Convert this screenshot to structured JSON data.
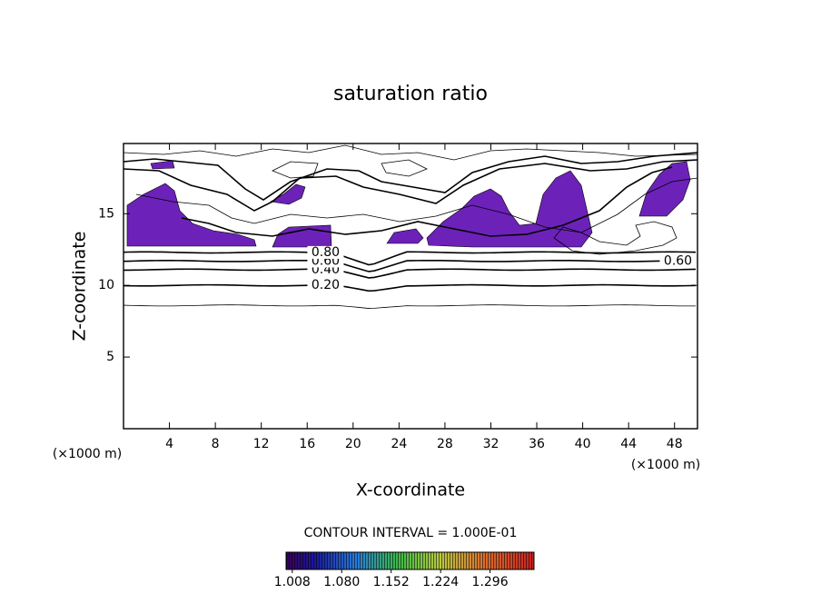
{
  "chart_data": {
    "type": "contour",
    "title": "saturation ratio",
    "x_label": "X-coordinate",
    "y_label": "Z-coordinate",
    "y_unit_label": "(×1000 m)",
    "x_unit_label": "(×1000 m)",
    "xlim": [
      0,
      50
    ],
    "ylim": [
      0,
      19.9
    ],
    "xticks": [
      4,
      8,
      12,
      16,
      20,
      24,
      28,
      32,
      36,
      40,
      44,
      48
    ],
    "yticks": [
      5,
      10,
      15
    ],
    "contours": [
      {
        "level": 0.1,
        "z": 8.6
      },
      {
        "level": 0.2,
        "label": "0.20",
        "z": 10.0,
        "label_x": [
          17.6
        ]
      },
      {
        "level": 0.4,
        "label": "0.40",
        "z": 11.1,
        "label_x": [
          17.6
        ]
      },
      {
        "level": 0.6,
        "label": "0.60",
        "z": 11.7,
        "label_x": [
          17.6,
          48.3
        ]
      },
      {
        "level": 0.8,
        "label": "0.80",
        "z": 12.3,
        "label_x": [
          17.6
        ]
      }
    ],
    "contour_interval": "CONTOUR INTERVAL = 1.000E-01",
    "colorbar": {
      "lim": [
        0.999,
        1.36
      ],
      "ticks": [
        {
          "value": 1.008,
          "label": "1.008"
        },
        {
          "value": 1.08,
          "label": "1.080"
        },
        {
          "value": 1.152,
          "label": "1.152"
        },
        {
          "value": 1.224,
          "label": "1.224"
        },
        {
          "value": 1.296,
          "label": "1.296"
        }
      ]
    }
  }
}
